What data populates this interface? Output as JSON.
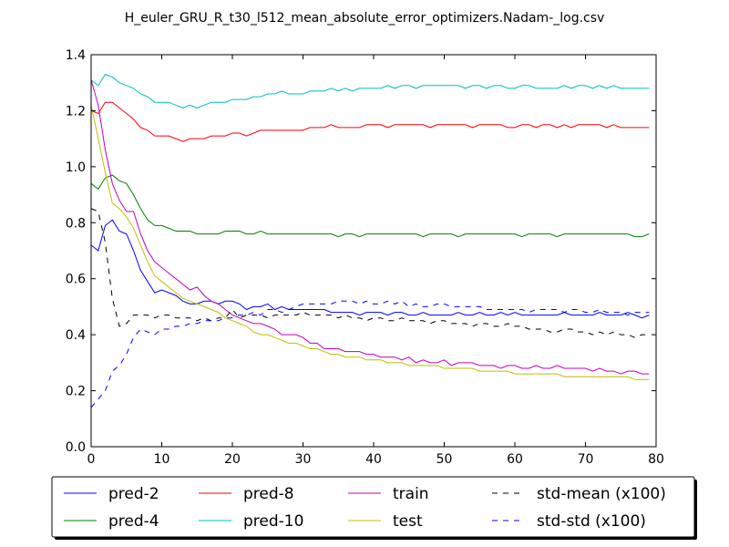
{
  "chart_data": {
    "type": "line",
    "title": "H_euler_GRU_R_t30_l512_mean_absolute_error_optimizers.Nadam-_log.csv",
    "xlabel": "",
    "ylabel": "",
    "xlim": [
      0,
      80
    ],
    "ylim": [
      0.0,
      1.4
    ],
    "xticks": [
      0,
      10,
      20,
      30,
      40,
      50,
      60,
      70,
      80
    ],
    "yticks": [
      0.0,
      0.2,
      0.4,
      0.6,
      0.8,
      1.0,
      1.2,
      1.4
    ],
    "xtick_labels": [
      "0",
      "10",
      "20",
      "30",
      "40",
      "50",
      "60",
      "70",
      "80"
    ],
    "ytick_labels": [
      "0.0",
      "0.2",
      "0.4",
      "0.6",
      "0.8",
      "1.0",
      "1.2",
      "1.4"
    ],
    "grid": false,
    "legend_placement": "bottom",
    "series": [
      {
        "name": "pred-2",
        "color": "#0000ff",
        "dash": "solid",
        "values": [
          0.72,
          0.7,
          0.79,
          0.81,
          0.77,
          0.76,
          0.7,
          0.63,
          0.59,
          0.55,
          0.56,
          0.55,
          0.54,
          0.52,
          0.51,
          0.51,
          0.52,
          0.52,
          0.51,
          0.52,
          0.52,
          0.51,
          0.49,
          0.5,
          0.5,
          0.51,
          0.49,
          0.5,
          0.49,
          0.49,
          0.49,
          0.49,
          0.49,
          0.49,
          0.48,
          0.48,
          0.48,
          0.48,
          0.47,
          0.48,
          0.48,
          0.48,
          0.47,
          0.48,
          0.48,
          0.47,
          0.47,
          0.48,
          0.47,
          0.47,
          0.47,
          0.47,
          0.48,
          0.47,
          0.47,
          0.48,
          0.47,
          0.47,
          0.48,
          0.47,
          0.48,
          0.47,
          0.47,
          0.47,
          0.47,
          0.47,
          0.47,
          0.48,
          0.47,
          0.47,
          0.47,
          0.47,
          0.48,
          0.47,
          0.47,
          0.47,
          0.48,
          0.47,
          0.46,
          0.47
        ]
      },
      {
        "name": "pred-4",
        "color": "#008000",
        "dash": "solid",
        "values": [
          0.94,
          0.92,
          0.96,
          0.97,
          0.95,
          0.94,
          0.9,
          0.85,
          0.81,
          0.79,
          0.79,
          0.78,
          0.77,
          0.77,
          0.77,
          0.76,
          0.76,
          0.76,
          0.76,
          0.77,
          0.77,
          0.77,
          0.76,
          0.76,
          0.77,
          0.76,
          0.76,
          0.76,
          0.76,
          0.76,
          0.76,
          0.76,
          0.76,
          0.76,
          0.76,
          0.75,
          0.76,
          0.76,
          0.75,
          0.76,
          0.76,
          0.76,
          0.76,
          0.76,
          0.76,
          0.76,
          0.76,
          0.75,
          0.76,
          0.76,
          0.76,
          0.76,
          0.75,
          0.76,
          0.76,
          0.76,
          0.76,
          0.76,
          0.76,
          0.76,
          0.76,
          0.75,
          0.76,
          0.76,
          0.76,
          0.76,
          0.75,
          0.76,
          0.76,
          0.76,
          0.76,
          0.76,
          0.76,
          0.76,
          0.76,
          0.76,
          0.76,
          0.75,
          0.75,
          0.76
        ]
      },
      {
        "name": "pred-8",
        "color": "#ff0000",
        "dash": "solid",
        "values": [
          1.2,
          1.19,
          1.23,
          1.23,
          1.21,
          1.19,
          1.17,
          1.14,
          1.13,
          1.11,
          1.11,
          1.11,
          1.1,
          1.09,
          1.1,
          1.1,
          1.1,
          1.11,
          1.11,
          1.11,
          1.12,
          1.12,
          1.11,
          1.12,
          1.13,
          1.13,
          1.13,
          1.13,
          1.13,
          1.13,
          1.13,
          1.14,
          1.14,
          1.14,
          1.15,
          1.14,
          1.14,
          1.14,
          1.14,
          1.15,
          1.15,
          1.15,
          1.14,
          1.15,
          1.15,
          1.15,
          1.15,
          1.15,
          1.14,
          1.15,
          1.15,
          1.15,
          1.15,
          1.15,
          1.14,
          1.15,
          1.15,
          1.15,
          1.15,
          1.14,
          1.14,
          1.15,
          1.15,
          1.14,
          1.15,
          1.15,
          1.14,
          1.15,
          1.14,
          1.15,
          1.15,
          1.15,
          1.15,
          1.14,
          1.15,
          1.14,
          1.14,
          1.14,
          1.14,
          1.14
        ]
      },
      {
        "name": "pred-10",
        "color": "#00bfbf",
        "dash": "solid",
        "values": [
          1.31,
          1.29,
          1.33,
          1.32,
          1.3,
          1.29,
          1.28,
          1.26,
          1.25,
          1.23,
          1.23,
          1.23,
          1.22,
          1.21,
          1.22,
          1.21,
          1.22,
          1.23,
          1.23,
          1.23,
          1.24,
          1.24,
          1.24,
          1.25,
          1.25,
          1.26,
          1.26,
          1.27,
          1.26,
          1.26,
          1.26,
          1.27,
          1.27,
          1.27,
          1.28,
          1.27,
          1.28,
          1.27,
          1.28,
          1.28,
          1.28,
          1.28,
          1.29,
          1.28,
          1.29,
          1.29,
          1.28,
          1.29,
          1.29,
          1.29,
          1.29,
          1.29,
          1.29,
          1.28,
          1.29,
          1.29,
          1.28,
          1.29,
          1.29,
          1.28,
          1.28,
          1.29,
          1.29,
          1.28,
          1.28,
          1.28,
          1.28,
          1.29,
          1.28,
          1.29,
          1.29,
          1.28,
          1.29,
          1.28,
          1.29,
          1.28,
          1.28,
          1.28,
          1.28,
          1.28
        ]
      },
      {
        "name": "train",
        "color": "#bf00bf",
        "dash": "solid",
        "values": [
          1.31,
          1.22,
          1.06,
          0.94,
          0.88,
          0.84,
          0.84,
          0.76,
          0.7,
          0.66,
          0.64,
          0.62,
          0.6,
          0.58,
          0.56,
          0.57,
          0.54,
          0.52,
          0.51,
          0.49,
          0.47,
          0.46,
          0.45,
          0.44,
          0.44,
          0.43,
          0.42,
          0.4,
          0.4,
          0.4,
          0.39,
          0.37,
          0.37,
          0.35,
          0.35,
          0.35,
          0.34,
          0.34,
          0.34,
          0.33,
          0.33,
          0.32,
          0.32,
          0.32,
          0.31,
          0.32,
          0.3,
          0.31,
          0.3,
          0.3,
          0.31,
          0.29,
          0.3,
          0.3,
          0.3,
          0.29,
          0.29,
          0.29,
          0.28,
          0.29,
          0.29,
          0.28,
          0.28,
          0.29,
          0.28,
          0.28,
          0.29,
          0.28,
          0.28,
          0.28,
          0.28,
          0.27,
          0.28,
          0.27,
          0.27,
          0.26,
          0.27,
          0.27,
          0.26,
          0.26
        ]
      },
      {
        "name": "test",
        "color": "#bfbf00",
        "dash": "solid",
        "values": [
          1.22,
          1.1,
          0.98,
          0.87,
          0.85,
          0.82,
          0.78,
          0.72,
          0.66,
          0.61,
          0.59,
          0.57,
          0.55,
          0.53,
          0.52,
          0.51,
          0.5,
          0.49,
          0.48,
          0.46,
          0.45,
          0.44,
          0.43,
          0.41,
          0.4,
          0.4,
          0.39,
          0.38,
          0.37,
          0.37,
          0.36,
          0.35,
          0.35,
          0.34,
          0.33,
          0.33,
          0.32,
          0.32,
          0.32,
          0.31,
          0.31,
          0.31,
          0.3,
          0.3,
          0.3,
          0.29,
          0.29,
          0.29,
          0.29,
          0.29,
          0.28,
          0.28,
          0.28,
          0.28,
          0.28,
          0.27,
          0.27,
          0.27,
          0.27,
          0.27,
          0.26,
          0.26,
          0.26,
          0.26,
          0.26,
          0.26,
          0.26,
          0.25,
          0.25,
          0.25,
          0.25,
          0.25,
          0.25,
          0.25,
          0.25,
          0.25,
          0.25,
          0.24,
          0.24,
          0.24
        ]
      },
      {
        "name": "std-mean (x100)",
        "color": "#000000",
        "dash": "dashed",
        "values": [
          0.85,
          0.84,
          0.73,
          0.53,
          0.43,
          0.44,
          0.47,
          0.47,
          0.47,
          0.46,
          0.47,
          0.47,
          0.46,
          0.46,
          0.46,
          0.45,
          0.46,
          0.45,
          0.46,
          0.46,
          0.49,
          0.46,
          0.47,
          0.47,
          0.47,
          0.46,
          0.47,
          0.47,
          0.47,
          0.47,
          0.48,
          0.47,
          0.47,
          0.47,
          0.47,
          0.46,
          0.47,
          0.46,
          0.46,
          0.45,
          0.46,
          0.46,
          0.45,
          0.45,
          0.46,
          0.45,
          0.45,
          0.45,
          0.44,
          0.45,
          0.45,
          0.44,
          0.44,
          0.44,
          0.43,
          0.44,
          0.44,
          0.43,
          0.43,
          0.44,
          0.43,
          0.43,
          0.42,
          0.42,
          0.42,
          0.41,
          0.41,
          0.42,
          0.42,
          0.41,
          0.41,
          0.4,
          0.41,
          0.4,
          0.41,
          0.4,
          0.4,
          0.39,
          0.4,
          0.4
        ]
      },
      {
        "name": "std-std (x100)",
        "color": "#0000ff",
        "dash": "dashed",
        "values": [
          0.14,
          0.17,
          0.2,
          0.27,
          0.29,
          0.33,
          0.39,
          0.42,
          0.41,
          0.4,
          0.42,
          0.42,
          0.43,
          0.43,
          0.44,
          0.44,
          0.45,
          0.45,
          0.45,
          0.46,
          0.46,
          0.47,
          0.47,
          0.48,
          0.47,
          0.49,
          0.49,
          0.48,
          0.49,
          0.5,
          0.51,
          0.51,
          0.51,
          0.51,
          0.51,
          0.52,
          0.52,
          0.52,
          0.51,
          0.52,
          0.51,
          0.51,
          0.52,
          0.51,
          0.52,
          0.5,
          0.51,
          0.5,
          0.5,
          0.51,
          0.51,
          0.5,
          0.5,
          0.5,
          0.5,
          0.5,
          0.49,
          0.49,
          0.49,
          0.49,
          0.49,
          0.49,
          0.48,
          0.49,
          0.49,
          0.49,
          0.49,
          0.48,
          0.49,
          0.49,
          0.48,
          0.48,
          0.49,
          0.48,
          0.48,
          0.48,
          0.47,
          0.48,
          0.48,
          0.48
        ]
      }
    ]
  }
}
